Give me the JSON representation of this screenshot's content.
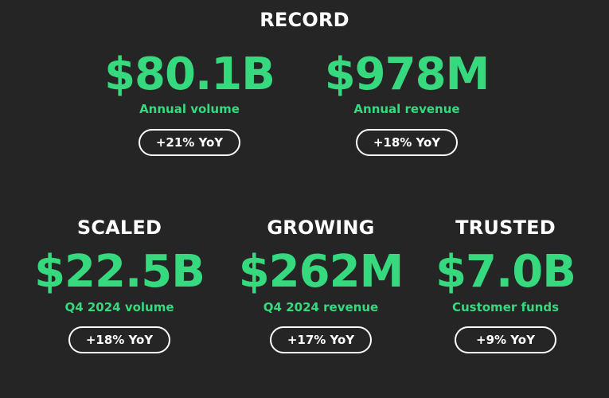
{
  "record": {
    "title": "RECORD",
    "volume": {
      "value": "$80.1B",
      "label": "Annual volume",
      "yoy": "+21% YoY"
    },
    "revenue": {
      "value": "$978M",
      "label": "Annual revenue",
      "yoy": "+18% YoY"
    }
  },
  "scaled": {
    "title": "SCALED",
    "value": "$22.5B",
    "label": "Q4 2024 volume",
    "yoy": "+18% YoY"
  },
  "growing": {
    "title": "GROWING",
    "value": "$262M",
    "label": "Q4 2024 revenue",
    "yoy": "+17% YoY"
  },
  "trusted": {
    "title": "TRUSTED",
    "value": "$7.0B",
    "label": "Customer funds",
    "yoy": "+9% YoY"
  },
  "colors": {
    "background": "#252525",
    "accent": "#36d97e",
    "text": "#ffffff"
  }
}
